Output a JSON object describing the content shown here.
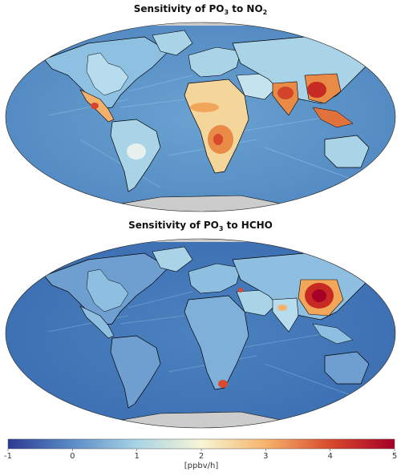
{
  "panels": [
    {
      "title_prefix": "Sensitivity of PO",
      "title_sub": "3",
      "title_mid": " to NO",
      "title_sub2": "2"
    },
    {
      "title_prefix": "Sensitivity of PO",
      "title_sub": "3",
      "title_mid": " to HCHO",
      "title_sub2": ""
    }
  ],
  "colorbar": {
    "ticks": [
      "-1",
      "0",
      "1",
      "2",
      "3",
      "4",
      "5"
    ],
    "tick_values": [
      -1,
      0,
      1,
      2,
      3,
      4,
      5
    ],
    "range": [
      -1,
      5
    ],
    "unit": "[ppbv/h]",
    "colors": [
      "#2b3a93",
      "#5b8cc6",
      "#a9d3e6",
      "#f7f6d6",
      "#f6b36b",
      "#d94a2e",
      "#a50026"
    ]
  },
  "colors": {
    "ocean_panel1": "#5b93c8",
    "ocean_panel2": "#3f73b6",
    "land_low": "#8fbfe0",
    "hot_mid": "#f2a65a",
    "hot_high": "#c62a22",
    "antarctica": "#cccccc",
    "border": "#000000"
  }
}
